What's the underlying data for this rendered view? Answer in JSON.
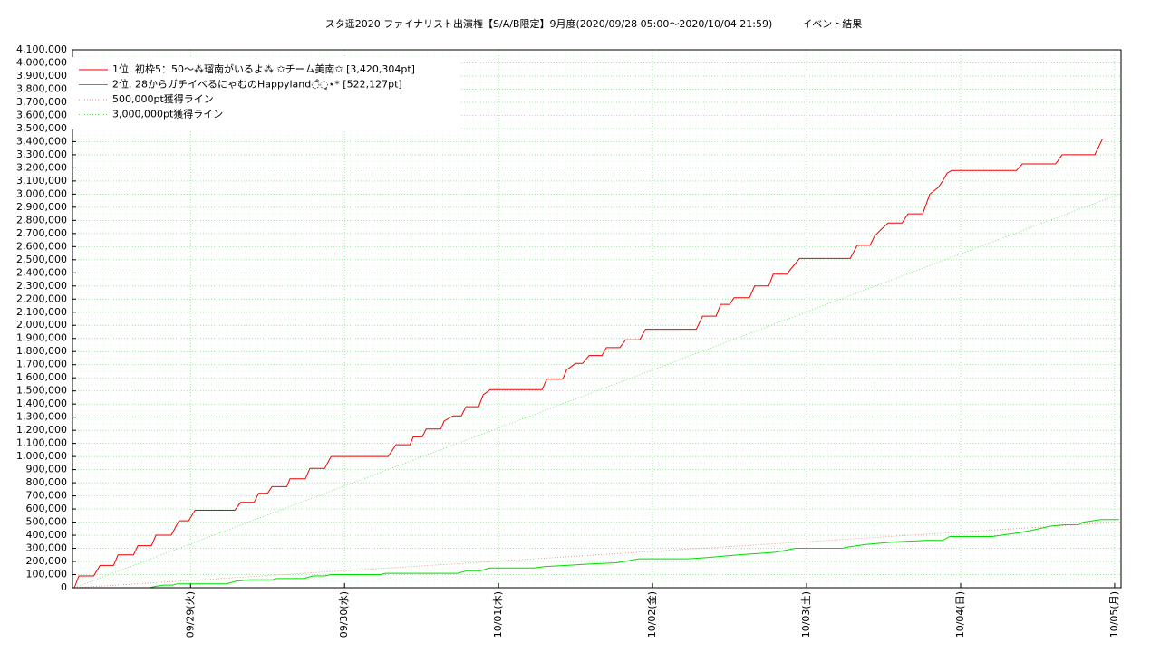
{
  "chart_data": {
    "type": "line",
    "title": "スタ遥2020 ファイナリスト出演権【S/A/B限定】9月度(2020/09/28 05:00〜2020/10/04 21:59)　　　イベント結果",
    "xlim": [
      5.6,
      169
    ],
    "xticks": [
      {
        "value": 24,
        "label": "09/29(火)"
      },
      {
        "value": 48,
        "label": "09/30(水)"
      },
      {
        "value": 72,
        "label": "10/01(木)"
      },
      {
        "value": 96,
        "label": "10/02(金)"
      },
      {
        "value": 120,
        "label": "10/03(土)"
      },
      {
        "value": 144,
        "label": "10/04(日)"
      },
      {
        "value": 168,
        "label": "10/05(月)"
      }
    ],
    "ylim": [
      0,
      4100000
    ],
    "yticks": [
      0,
      {
        "value": 100000,
        "label": "100,000"
      },
      {
        "value": 200000,
        "label": "200,000"
      },
      {
        "value": 300000,
        "label": "300,000"
      },
      {
        "value": 400000,
        "label": "400,000"
      },
      {
        "value": 500000,
        "label": "500,000"
      },
      {
        "value": 600000,
        "label": "600,000"
      },
      {
        "value": 700000,
        "label": "700,000"
      },
      {
        "value": 800000,
        "label": "800,000"
      },
      {
        "value": 900000,
        "label": "900,000"
      },
      {
        "value": 1000000,
        "label": "1,000,000"
      },
      {
        "value": 1100000,
        "label": "1,100,000"
      },
      {
        "value": 1200000,
        "label": "1,200,000"
      },
      {
        "value": 1300000,
        "label": "1,300,000"
      },
      {
        "value": 1400000,
        "label": "1,400,000"
      },
      {
        "value": 1500000,
        "label": "1,500,000"
      },
      {
        "value": 1600000,
        "label": "1,600,000"
      },
      {
        "value": 1700000,
        "label": "1,700,000"
      },
      {
        "value": 1800000,
        "label": "1,800,000"
      },
      {
        "value": 1900000,
        "label": "1,900,000"
      },
      {
        "value": 2000000,
        "label": "2,000,000"
      },
      {
        "value": 2100000,
        "label": "2,100,000"
      },
      {
        "value": 2200000,
        "label": "2,200,000"
      },
      {
        "value": 2300000,
        "label": "2,300,000"
      },
      {
        "value": 2400000,
        "label": "2,400,000"
      },
      {
        "value": 2500000,
        "label": "2,500,000"
      },
      {
        "value": 2600000,
        "label": "2,600,000"
      },
      {
        "value": 2700000,
        "label": "2,700,000"
      },
      {
        "value": 2800000,
        "label": "2,800,000"
      },
      {
        "value": 2900000,
        "label": "2,900,000"
      },
      {
        "value": 3000000,
        "label": "3,000,000"
      },
      {
        "value": 3100000,
        "label": "3,100,000"
      },
      {
        "value": 3200000,
        "label": "3,200,000"
      },
      {
        "value": 3300000,
        "label": "3,300,000"
      },
      {
        "value": 3400000,
        "label": "3,400,000"
      },
      {
        "value": 3500000,
        "label": "3,500,000"
      },
      {
        "value": 3600000,
        "label": "3,600,000"
      },
      {
        "value": 3700000,
        "label": "3,700,000"
      },
      {
        "value": 3800000,
        "label": "3,800,000"
      },
      {
        "value": 3900000,
        "label": "3,900,000"
      },
      {
        "value": 4000000,
        "label": "4,000,000"
      },
      {
        "value": 4100000,
        "label": "4,100,000"
      }
    ],
    "grid": true,
    "legend": "upper-left",
    "series": [
      {
        "name": "1位. 初枠5：50〜⁂瑠南がいるよ⁂ ✩チーム美南✩ [3,420,304pt]",
        "color": "#ee0000",
        "style": "solid",
        "x": [
          5.9,
          6.6,
          8.9,
          9.9,
          12.0,
          12.7,
          15.1,
          15.8,
          17.9,
          18.6,
          21.0,
          22.2,
          23.7,
          24.7,
          30.9,
          31.8,
          33.9,
          34.6,
          36.0,
          36.7,
          39.0,
          39.5,
          41.9,
          42.6,
          44.9,
          45.9,
          54.8,
          56.0,
          58.2,
          58.7,
          60.1,
          60.7,
          63.0,
          63.5,
          64.9,
          66.2,
          66.9,
          68.9,
          69.6,
          70.7,
          78.8,
          79.5,
          82.0,
          82.6,
          84.0,
          85.1,
          86.1,
          88.1,
          88.8,
          90.9,
          91.8,
          94.0,
          94.9,
          102.8,
          103.8,
          105.9,
          106.6,
          108.0,
          108.7,
          111.1,
          111.9,
          114.1,
          114.8,
          116.9,
          117.9,
          118.9,
          126.8,
          127.9,
          129.9,
          130.6,
          131.6,
          132.7,
          134.9,
          135.8,
          138.1,
          139.2,
          140.5,
          141.2,
          141.9,
          142.6,
          152.7,
          153.6,
          158.8,
          159.8,
          164.9,
          165.5,
          166.1,
          168.7
        ],
        "values": [
          0,
          90000,
          90000,
          170000,
          170000,
          250000,
          250000,
          320000,
          320000,
          400000,
          400000,
          510000,
          510000,
          590000,
          590000,
          650000,
          650000,
          720000,
          720000,
          770000,
          770000,
          830000,
          830000,
          910000,
          910000,
          1000000,
          1000000,
          1090000,
          1090000,
          1150000,
          1150000,
          1210000,
          1210000,
          1270000,
          1310000,
          1310000,
          1380000,
          1380000,
          1470000,
          1510000,
          1510000,
          1590000,
          1590000,
          1660000,
          1710000,
          1710000,
          1770000,
          1770000,
          1830000,
          1830000,
          1890000,
          1890000,
          1970000,
          1970000,
          2070000,
          2070000,
          2160000,
          2160000,
          2210000,
          2210000,
          2300000,
          2300000,
          2390000,
          2390000,
          2450000,
          2510000,
          2510000,
          2610000,
          2610000,
          2680000,
          2730000,
          2780000,
          2780000,
          2850000,
          2850000,
          3000000,
          3050000,
          3100000,
          3160000,
          3180000,
          3180000,
          3230000,
          3230000,
          3300000,
          3300000,
          3360000,
          3420000,
          3420000
        ]
      },
      {
        "name": "2位. 28からガチイベるにゃむのHappyland◌̊◌̥⋆*  [522,127pt]",
        "color": "#00dd00",
        "style": "solid",
        "x": [
          5.9,
          17.6,
          18.4,
          19.8,
          21.2,
          21.9,
          29.6,
          31.1,
          33.2,
          36.7,
          37.4,
          41.6,
          43.1,
          44.9,
          45.9,
          53.6,
          54.4,
          65.6,
          67.1,
          69.2,
          70.6,
          77.6,
          79.1,
          82.6,
          86.1,
          90.4,
          93.9,
          101.6,
          104.5,
          109.4,
          115.1,
          118.3,
          125.6,
          126.4,
          129.2,
          134.1,
          138.4,
          141.2,
          142.3,
          148.9,
          150.4,
          153.2,
          155.3,
          158.1,
          160.2,
          162.4,
          163.1,
          165.9,
          168.7
        ],
        "values": [
          0,
          0,
          10000,
          20000,
          20000,
          30000,
          30000,
          50000,
          60000,
          60000,
          70000,
          70000,
          90000,
          90000,
          100000,
          100000,
          110000,
          110000,
          130000,
          130000,
          150000,
          150000,
          160000,
          170000,
          180000,
          190000,
          220000,
          220000,
          230000,
          250000,
          270000,
          300000,
          300000,
          310000,
          330000,
          350000,
          360000,
          360000,
          390000,
          390000,
          400000,
          420000,
          440000,
          470000,
          480000,
          480000,
          500000,
          520000,
          520000
        ]
      },
      {
        "name": "500,000pt獲得ライン",
        "color": "#e88080",
        "style": "dotted",
        "x": [
          5.9,
          168.7
        ],
        "values": [
          0,
          500000
        ]
      },
      {
        "name": "3,000,000pt獲得ライン",
        "color": "#66dd66",
        "style": "dotted",
        "x": [
          5.9,
          168.7
        ],
        "values": [
          0,
          3000000
        ]
      }
    ]
  }
}
